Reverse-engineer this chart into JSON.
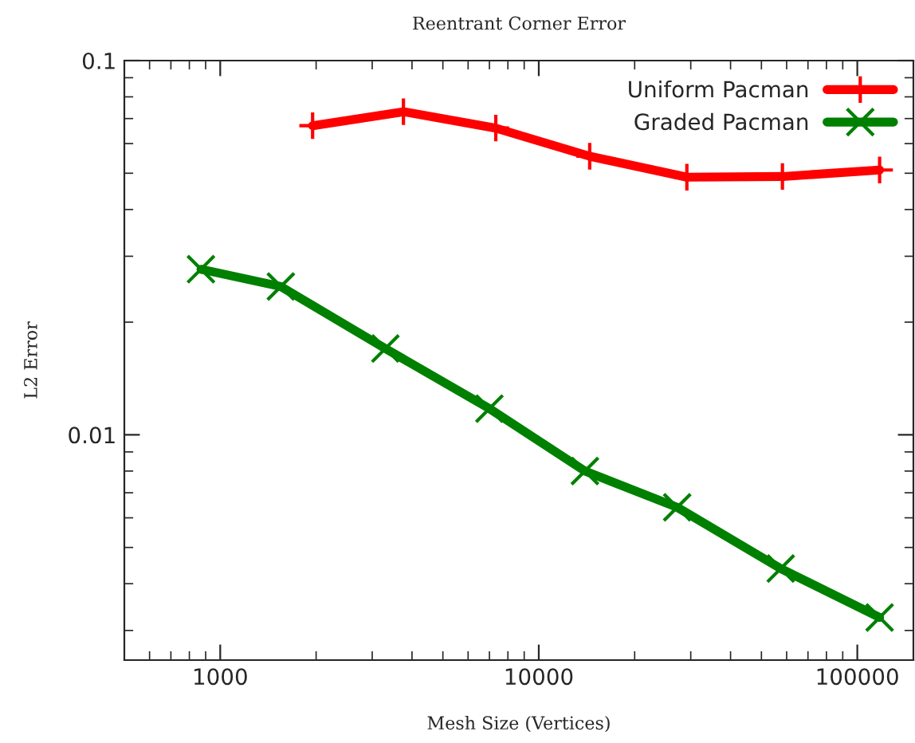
{
  "chart_data": {
    "type": "line",
    "title": "Reentrant Corner Error",
    "xlabel": "Mesh Size (Vertices)",
    "ylabel": "L2 Error",
    "log": "xy",
    "xlim": [
      500,
      150000
    ],
    "ylim": [
      0.0025,
      0.1
    ],
    "xticks": [
      1000,
      10000,
      100000
    ],
    "yticks": [
      0.01,
      0.1
    ],
    "grid": false,
    "legend": "top right",
    "line_style": "solid",
    "series": [
      {
        "name": "Uniform Pacman",
        "color": "#ff0000",
        "marker": "plus",
        "x": [
          1950,
          3760,
          7330,
          14450,
          29170,
          58200,
          117500
        ],
        "values": [
          0.067,
          0.073,
          0.066,
          0.0555,
          0.0488,
          0.049,
          0.051
        ]
      },
      {
        "name": "Graded Pacman",
        "color": "#008000",
        "marker": "cross",
        "x": [
          870,
          1550,
          3300,
          7000,
          13960,
          27200,
          57500,
          117500
        ],
        "values": [
          0.0277,
          0.0249,
          0.017,
          0.01175,
          0.008,
          0.0064,
          0.00439,
          0.00325
        ]
      }
    ]
  }
}
